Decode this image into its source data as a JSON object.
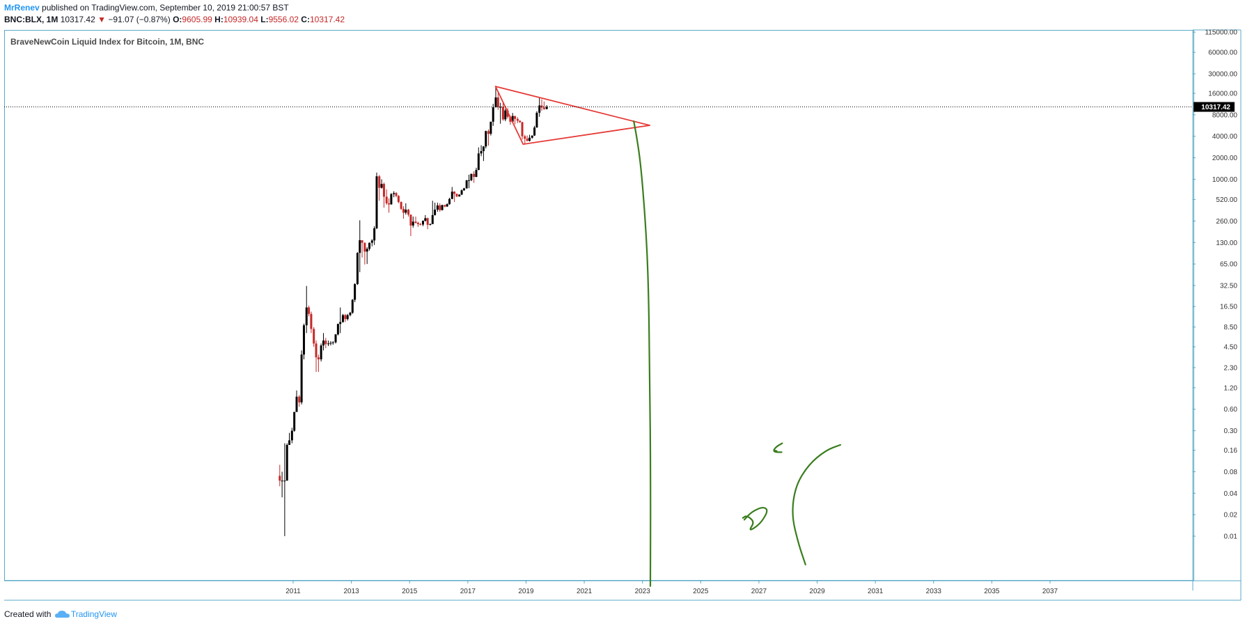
{
  "header": {
    "author": "MrRenev",
    "published": "published on TradingView.com, September 10, 2019 21:00:57 BST",
    "symbol": "BNC:BLX, 1M",
    "last": "10317.42",
    "arrow": "▼",
    "change": "−91.07 (−0.87%)",
    "o_label": "O:",
    "o_val": "9605.99",
    "h_label": "H:",
    "h_val": "10939.04",
    "l_label": "L:",
    "l_val": "9556.02",
    "c_label": "C:",
    "c_val": "10317.42"
  },
  "footer": {
    "created": "Created with",
    "brand": "TradingView"
  },
  "colors": {
    "up": "#000000",
    "down": "#c62828",
    "triangle": "#e53935",
    "drawing": "#3a7d1e",
    "frame": "#5aa8c7"
  },
  "chart_data": {
    "type": "candlestick",
    "title": "BraveNewCoin Liquid Index for Bitcoin, 1M, BNC",
    "y_scale": "log",
    "ylim": [
      0.005,
      115000
    ],
    "xlim": [
      2008.7,
      2038.0
    ],
    "y_ticks": [
      {
        "v": 115000,
        "label": "115000.00"
      },
      {
        "v": 60000,
        "label": "60000.00"
      },
      {
        "v": 30000,
        "label": "30000.00"
      },
      {
        "v": 16000,
        "label": "16000.00"
      },
      {
        "v": 8000,
        "label": "8000.00"
      },
      {
        "v": 4000,
        "label": "4000.00"
      },
      {
        "v": 2000,
        "label": "2000.00"
      },
      {
        "v": 1000,
        "label": "1000.00"
      },
      {
        "v": 520,
        "label": "520.00"
      },
      {
        "v": 260,
        "label": "260.00"
      },
      {
        "v": 130,
        "label": "130.00"
      },
      {
        "v": 65,
        "label": "65.00"
      },
      {
        "v": 32.5,
        "label": "32.50"
      },
      {
        "v": 16.5,
        "label": "16.50"
      },
      {
        "v": 8.5,
        "label": "8.50"
      },
      {
        "v": 4.5,
        "label": "4.50"
      },
      {
        "v": 2.3,
        "label": "2.30"
      },
      {
        "v": 1.2,
        "label": "1.20"
      },
      {
        "v": 0.6,
        "label": "0.60"
      },
      {
        "v": 0.3,
        "label": "0.30"
      },
      {
        "v": 0.16,
        "label": "0.16"
      },
      {
        "v": 0.08,
        "label": "0.08"
      },
      {
        "v": 0.04,
        "label": "0.04"
      },
      {
        "v": 0.02,
        "label": "0.02"
      },
      {
        "v": 0.01,
        "label": "0.01"
      }
    ],
    "x_ticks": [
      {
        "v": 2011,
        "label": "2011"
      },
      {
        "v": 2013,
        "label": "2013"
      },
      {
        "v": 2015,
        "label": "2015"
      },
      {
        "v": 2017,
        "label": "2017"
      },
      {
        "v": 2019,
        "label": "2019"
      },
      {
        "v": 2021,
        "label": "2021"
      },
      {
        "v": 2023,
        "label": "2023"
      },
      {
        "v": 2025,
        "label": "2025"
      },
      {
        "v": 2027,
        "label": "2027"
      },
      {
        "v": 2029,
        "label": "2029"
      },
      {
        "v": 2031,
        "label": "2031"
      },
      {
        "v": 2033,
        "label": "2033"
      },
      {
        "v": 2035,
        "label": "2035"
      },
      {
        "v": 2037,
        "label": "2037"
      }
    ],
    "last_price": 10317.42,
    "last_price_label": "10317.42",
    "candles": [
      {
        "t": 2010.54,
        "o": 0.07,
        "h": 0.1,
        "l": 0.05,
        "c": 0.06
      },
      {
        "t": 2010.62,
        "o": 0.06,
        "h": 0.08,
        "l": 0.035,
        "c": 0.06
      },
      {
        "t": 2010.71,
        "o": 0.06,
        "h": 0.2,
        "l": 0.01,
        "c": 0.06
      },
      {
        "t": 2010.79,
        "o": 0.06,
        "h": 0.2,
        "l": 0.06,
        "c": 0.19
      },
      {
        "t": 2010.87,
        "o": 0.19,
        "h": 0.28,
        "l": 0.19,
        "c": 0.22
      },
      {
        "t": 2010.96,
        "o": 0.22,
        "h": 0.33,
        "l": 0.2,
        "c": 0.3
      },
      {
        "t": 2011.04,
        "o": 0.3,
        "h": 0.55,
        "l": 0.29,
        "c": 0.55
      },
      {
        "t": 2011.12,
        "o": 0.55,
        "h": 1.1,
        "l": 0.75,
        "c": 0.9
      },
      {
        "t": 2011.21,
        "o": 0.9,
        "h": 0.95,
        "l": 0.65,
        "c": 0.75
      },
      {
        "t": 2011.29,
        "o": 0.75,
        "h": 4.0,
        "l": 0.7,
        "c": 3.5
      },
      {
        "t": 2011.37,
        "o": 3.5,
        "h": 9.5,
        "l": 3.0,
        "c": 9.0
      },
      {
        "t": 2011.46,
        "o": 9.0,
        "h": 32.0,
        "l": 7.0,
        "c": 16.0
      },
      {
        "t": 2011.54,
        "o": 16.0,
        "h": 17.0,
        "l": 12.0,
        "c": 13.0
      },
      {
        "t": 2011.62,
        "o": 13.0,
        "h": 14.0,
        "l": 7.0,
        "c": 8.0
      },
      {
        "t": 2011.71,
        "o": 8.0,
        "h": 8.5,
        "l": 4.5,
        "c": 5.0
      },
      {
        "t": 2011.79,
        "o": 5.0,
        "h": 5.5,
        "l": 2.0,
        "c": 3.2
      },
      {
        "t": 2011.87,
        "o": 3.2,
        "h": 3.5,
        "l": 2.0,
        "c": 3.0
      },
      {
        "t": 2011.96,
        "o": 3.0,
        "h": 5.0,
        "l": 2.8,
        "c": 4.7
      },
      {
        "t": 2012.04,
        "o": 4.7,
        "h": 7.0,
        "l": 4.0,
        "c": 5.5
      },
      {
        "t": 2012.12,
        "o": 5.5,
        "h": 6.0,
        "l": 4.3,
        "c": 4.9
      },
      {
        "t": 2012.21,
        "o": 4.9,
        "h": 5.5,
        "l": 4.6,
        "c": 5.0
      },
      {
        "t": 2012.29,
        "o": 5.0,
        "h": 5.4,
        "l": 4.7,
        "c": 5.1
      },
      {
        "t": 2012.37,
        "o": 5.1,
        "h": 5.4,
        "l": 4.8,
        "c": 5.2
      },
      {
        "t": 2012.46,
        "o": 5.2,
        "h": 6.8,
        "l": 5.0,
        "c": 6.7
      },
      {
        "t": 2012.54,
        "o": 6.7,
        "h": 9.5,
        "l": 6.5,
        "c": 9.4
      },
      {
        "t": 2012.62,
        "o": 9.4,
        "h": 16.0,
        "l": 7.0,
        "c": 10.0
      },
      {
        "t": 2012.71,
        "o": 10.0,
        "h": 13.0,
        "l": 9.8,
        "c": 12.5
      },
      {
        "t": 2012.79,
        "o": 12.5,
        "h": 13.0,
        "l": 10.0,
        "c": 11.0
      },
      {
        "t": 2012.87,
        "o": 11.0,
        "h": 13.0,
        "l": 10.5,
        "c": 12.5
      },
      {
        "t": 2012.96,
        "o": 12.5,
        "h": 13.9,
        "l": 12.0,
        "c": 13.5
      },
      {
        "t": 2013.04,
        "o": 13.5,
        "h": 21.0,
        "l": 13.0,
        "c": 20.5
      },
      {
        "t": 2013.12,
        "o": 20.5,
        "h": 35.0,
        "l": 19.0,
        "c": 34.0
      },
      {
        "t": 2013.21,
        "o": 34.0,
        "h": 95.0,
        "l": 33.0,
        "c": 93.0
      },
      {
        "t": 2013.29,
        "o": 93.0,
        "h": 266,
        "l": 50.0,
        "c": 140
      },
      {
        "t": 2013.37,
        "o": 140,
        "h": 140,
        "l": 80.0,
        "c": 129
      },
      {
        "t": 2013.46,
        "o": 129,
        "h": 130,
        "l": 64.0,
        "c": 97.0
      },
      {
        "t": 2013.54,
        "o": 97.0,
        "h": 112,
        "l": 65.0,
        "c": 106
      },
      {
        "t": 2013.62,
        "o": 106,
        "h": 130,
        "l": 100,
        "c": 129
      },
      {
        "t": 2013.71,
        "o": 129,
        "h": 145,
        "l": 115,
        "c": 139
      },
      {
        "t": 2013.79,
        "o": 139,
        "h": 220,
        "l": 120,
        "c": 206
      },
      {
        "t": 2013.87,
        "o": 206,
        "h": 1240,
        "l": 200,
        "c": 1100
      },
      {
        "t": 2013.96,
        "o": 1100,
        "h": 1150,
        "l": 500,
        "c": 760
      },
      {
        "t": 2014.04,
        "o": 760,
        "h": 1000,
        "l": 740,
        "c": 860
      },
      {
        "t": 2014.12,
        "o": 860,
        "h": 900,
        "l": 400,
        "c": 570
      },
      {
        "t": 2014.21,
        "o": 570,
        "h": 720,
        "l": 440,
        "c": 460
      },
      {
        "t": 2014.29,
        "o": 460,
        "h": 540,
        "l": 340,
        "c": 445
      },
      {
        "t": 2014.37,
        "o": 445,
        "h": 640,
        "l": 440,
        "c": 620
      },
      {
        "t": 2014.46,
        "o": 620,
        "h": 680,
        "l": 560,
        "c": 640
      },
      {
        "t": 2014.54,
        "o": 640,
        "h": 660,
        "l": 560,
        "c": 585
      },
      {
        "t": 2014.62,
        "o": 585,
        "h": 600,
        "l": 460,
        "c": 480
      },
      {
        "t": 2014.71,
        "o": 480,
        "h": 490,
        "l": 370,
        "c": 385
      },
      {
        "t": 2014.79,
        "o": 385,
        "h": 420,
        "l": 280,
        "c": 340
      },
      {
        "t": 2014.87,
        "o": 340,
        "h": 460,
        "l": 320,
        "c": 375
      },
      {
        "t": 2014.96,
        "o": 375,
        "h": 385,
        "l": 300,
        "c": 320
      },
      {
        "t": 2015.04,
        "o": 320,
        "h": 320,
        "l": 160,
        "c": 225
      },
      {
        "t": 2015.12,
        "o": 225,
        "h": 300,
        "l": 210,
        "c": 255
      },
      {
        "t": 2015.21,
        "o": 255,
        "h": 300,
        "l": 240,
        "c": 245
      },
      {
        "t": 2015.29,
        "o": 245,
        "h": 255,
        "l": 215,
        "c": 235
      },
      {
        "t": 2015.37,
        "o": 235,
        "h": 245,
        "l": 225,
        "c": 232
      },
      {
        "t": 2015.46,
        "o": 232,
        "h": 265,
        "l": 220,
        "c": 262
      },
      {
        "t": 2015.54,
        "o": 262,
        "h": 315,
        "l": 255,
        "c": 285
      },
      {
        "t": 2015.62,
        "o": 285,
        "h": 290,
        "l": 200,
        "c": 230
      },
      {
        "t": 2015.71,
        "o": 230,
        "h": 240,
        "l": 225,
        "c": 236
      },
      {
        "t": 2015.79,
        "o": 236,
        "h": 500,
        "l": 236,
        "c": 315
      },
      {
        "t": 2015.87,
        "o": 315,
        "h": 470,
        "l": 310,
        "c": 375
      },
      {
        "t": 2015.96,
        "o": 375,
        "h": 470,
        "l": 350,
        "c": 430
      },
      {
        "t": 2016.04,
        "o": 430,
        "h": 460,
        "l": 350,
        "c": 370
      },
      {
        "t": 2016.12,
        "o": 370,
        "h": 440,
        "l": 365,
        "c": 435
      },
      {
        "t": 2016.21,
        "o": 435,
        "h": 440,
        "l": 405,
        "c": 415
      },
      {
        "t": 2016.29,
        "o": 415,
        "h": 460,
        "l": 410,
        "c": 448
      },
      {
        "t": 2016.37,
        "o": 448,
        "h": 550,
        "l": 440,
        "c": 530
      },
      {
        "t": 2016.46,
        "o": 530,
        "h": 780,
        "l": 525,
        "c": 670
      },
      {
        "t": 2016.54,
        "o": 670,
        "h": 680,
        "l": 480,
        "c": 625
      },
      {
        "t": 2016.62,
        "o": 625,
        "h": 630,
        "l": 560,
        "c": 575
      },
      {
        "t": 2016.71,
        "o": 575,
        "h": 615,
        "l": 570,
        "c": 610
      },
      {
        "t": 2016.79,
        "o": 610,
        "h": 720,
        "l": 600,
        "c": 700
      },
      {
        "t": 2016.87,
        "o": 700,
        "h": 760,
        "l": 690,
        "c": 745
      },
      {
        "t": 2016.96,
        "o": 745,
        "h": 980,
        "l": 740,
        "c": 965
      },
      {
        "t": 2017.04,
        "o": 965,
        "h": 1160,
        "l": 750,
        "c": 970
      },
      {
        "t": 2017.12,
        "o": 970,
        "h": 1200,
        "l": 940,
        "c": 1190
      },
      {
        "t": 2017.21,
        "o": 1190,
        "h": 1300,
        "l": 890,
        "c": 1080
      },
      {
        "t": 2017.29,
        "o": 1080,
        "h": 1450,
        "l": 1070,
        "c": 1350
      },
      {
        "t": 2017.37,
        "o": 1350,
        "h": 2800,
        "l": 1340,
        "c": 2300
      },
      {
        "t": 2017.46,
        "o": 2300,
        "h": 3000,
        "l": 2100,
        "c": 2480
      },
      {
        "t": 2017.54,
        "o": 2480,
        "h": 2900,
        "l": 1800,
        "c": 2880
      },
      {
        "t": 2017.62,
        "o": 2880,
        "h": 4800,
        "l": 2700,
        "c": 4730
      },
      {
        "t": 2017.71,
        "o": 4730,
        "h": 5000,
        "l": 2950,
        "c": 4330
      },
      {
        "t": 2017.79,
        "o": 4330,
        "h": 6400,
        "l": 4100,
        "c": 6400
      },
      {
        "t": 2017.87,
        "o": 6400,
        "h": 11400,
        "l": 5600,
        "c": 10200
      },
      {
        "t": 2017.96,
        "o": 10200,
        "h": 19700,
        "l": 10100,
        "c": 14000
      },
      {
        "t": 2018.04,
        "o": 14000,
        "h": 17200,
        "l": 9400,
        "c": 10200
      },
      {
        "t": 2018.12,
        "o": 10200,
        "h": 11800,
        "l": 6000,
        "c": 10300
      },
      {
        "t": 2018.21,
        "o": 10300,
        "h": 11700,
        "l": 6600,
        "c": 6900
      },
      {
        "t": 2018.29,
        "o": 6900,
        "h": 9700,
        "l": 6500,
        "c": 9200
      },
      {
        "t": 2018.37,
        "o": 9200,
        "h": 9900,
        "l": 7100,
        "c": 7500
      },
      {
        "t": 2018.46,
        "o": 7500,
        "h": 7800,
        "l": 5800,
        "c": 6400
      },
      {
        "t": 2018.54,
        "o": 6400,
        "h": 8500,
        "l": 6300,
        "c": 7700
      },
      {
        "t": 2018.62,
        "o": 7700,
        "h": 7700,
        "l": 5900,
        "c": 7000
      },
      {
        "t": 2018.71,
        "o": 7000,
        "h": 7400,
        "l": 6100,
        "c": 6600
      },
      {
        "t": 2018.79,
        "o": 6600,
        "h": 6700,
        "l": 6200,
        "c": 6300
      },
      {
        "t": 2018.87,
        "o": 6300,
        "h": 6400,
        "l": 3600,
        "c": 4000
      },
      {
        "t": 2018.96,
        "o": 4000,
        "h": 4200,
        "l": 3100,
        "c": 3700
      },
      {
        "t": 2019.04,
        "o": 3700,
        "h": 4100,
        "l": 3400,
        "c": 3450
      },
      {
        "t": 2019.12,
        "o": 3450,
        "h": 4200,
        "l": 3380,
        "c": 3820
      },
      {
        "t": 2019.21,
        "o": 3820,
        "h": 4100,
        "l": 3700,
        "c": 4100
      },
      {
        "t": 2019.29,
        "o": 4100,
        "h": 5600,
        "l": 4050,
        "c": 5300
      },
      {
        "t": 2019.37,
        "o": 5300,
        "h": 9000,
        "l": 5300,
        "c": 8550
      },
      {
        "t": 2019.46,
        "o": 8550,
        "h": 13800,
        "l": 7500,
        "c": 10800
      },
      {
        "t": 2019.54,
        "o": 10800,
        "h": 13200,
        "l": 9100,
        "c": 10100
      },
      {
        "t": 2019.62,
        "o": 10100,
        "h": 12300,
        "l": 9400,
        "c": 9600
      },
      {
        "t": 2019.71,
        "o": 9606,
        "h": 10939,
        "l": 9556,
        "c": 10317
      }
    ],
    "annotations": {
      "triangle": {
        "color": "#e53935",
        "points": [
          [
            2017.95,
            20000
          ],
          [
            2023.25,
            5700
          ],
          [
            2018.9,
            3100
          ]
        ]
      },
      "drawings": [
        {
          "color": "#3a7d1e",
          "points": [
            [
              2022.7,
              6500
            ],
            [
              2022.8,
              4000
            ],
            [
              2022.95,
              1500
            ],
            [
              2023.1,
              260
            ],
            [
              2023.2,
              40
            ],
            [
              2023.25,
              2
            ],
            [
              2023.28,
              0.05
            ],
            [
              2023.27,
              0.002
            ]
          ]
        },
        {
          "color": "#3a7d1e",
          "points": [
            [
              2028.6,
              0.004
            ],
            [
              2028.35,
              0.008
            ],
            [
              2028.12,
              0.02
            ],
            [
              2028.25,
              0.05
            ],
            [
              2028.7,
              0.1
            ],
            [
              2029.3,
              0.16
            ],
            [
              2029.8,
              0.19
            ]
          ]
        },
        {
          "color": "#3a7d1e",
          "points": [
            [
              2027.8,
              0.2
            ],
            [
              2027.6,
              0.18
            ],
            [
              2027.48,
              0.155
            ],
            [
              2027.65,
              0.155
            ],
            [
              2027.5,
              0.16
            ],
            [
              2027.55,
              0.15
            ],
            [
              2027.78,
              0.15
            ]
          ]
        },
        {
          "color": "#3a7d1e",
          "points": [
            [
              2026.5,
              0.017
            ],
            [
              2026.75,
              0.022
            ],
            [
              2027.15,
              0.026
            ],
            [
              2027.32,
              0.023
            ],
            [
              2027.1,
              0.016
            ],
            [
              2026.85,
              0.013
            ],
            [
              2026.66,
              0.012
            ],
            [
              2026.85,
              0.016
            ],
            [
              2026.58,
              0.0195
            ],
            [
              2026.45,
              0.018
            ]
          ]
        }
      ]
    }
  }
}
